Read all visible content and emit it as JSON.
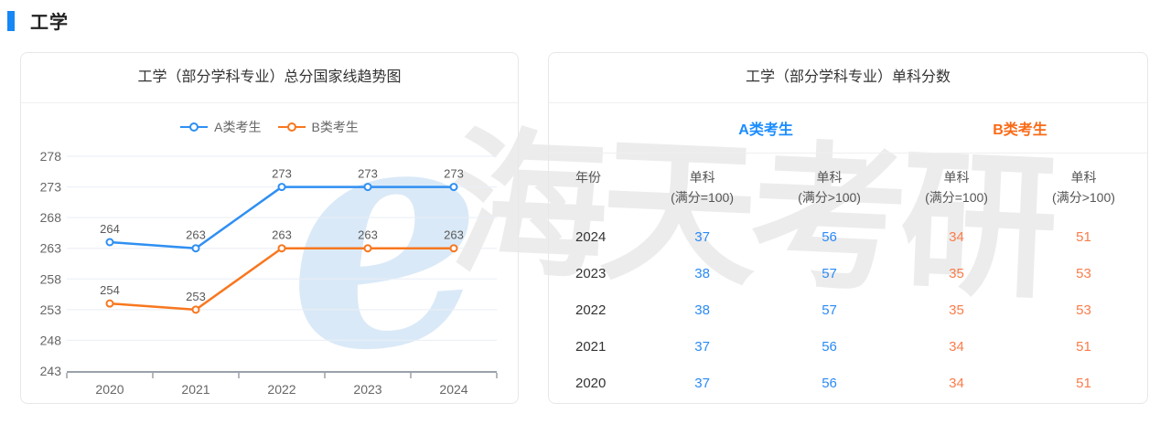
{
  "page": {
    "title": "工学"
  },
  "watermark": {
    "logo_glyph": "e",
    "text": "海天考研"
  },
  "chart_data": {
    "type": "line",
    "title": "工学（部分学科专业）总分国家线趋势图",
    "categories": [
      "2020",
      "2021",
      "2022",
      "2023",
      "2024"
    ],
    "series": [
      {
        "name": "A类考生",
        "color": "#2f8ff2",
        "values": [
          264,
          263,
          273,
          273,
          273
        ]
      },
      {
        "name": "B类考生",
        "color": "#f8771f",
        "values": [
          254,
          253,
          263,
          263,
          263
        ]
      }
    ],
    "ylim": [
      243,
      278
    ],
    "ytick_step": 5,
    "grid": true,
    "legend_position": "top",
    "xlabel": "",
    "ylabel": ""
  },
  "table_panel": {
    "title": "工学（部分学科专业）单科分数",
    "group_headers": [
      {
        "label": "A类考生",
        "color": "#1a8cff"
      },
      {
        "label": "B类考生",
        "color": "#fa6a16"
      }
    ],
    "columns": [
      {
        "line1": "年份",
        "line2": ""
      },
      {
        "line1": "单科",
        "line2": "(满分=100)"
      },
      {
        "line1": "单科",
        "line2": "(满分>100)"
      },
      {
        "line1": "单科",
        "line2": "(满分=100)"
      },
      {
        "line1": "单科",
        "line2": "(满分>100)"
      }
    ],
    "value_colors": [
      "#333333",
      "#2b8af5",
      "#2b8af5",
      "#fa7c4a",
      "#fa7c4a"
    ],
    "rows": [
      [
        "2024",
        "37",
        "56",
        "34",
        "51"
      ],
      [
        "2023",
        "38",
        "57",
        "35",
        "53"
      ],
      [
        "2022",
        "38",
        "57",
        "35",
        "53"
      ],
      [
        "2021",
        "37",
        "56",
        "34",
        "51"
      ],
      [
        "2020",
        "37",
        "56",
        "34",
        "51"
      ]
    ]
  },
  "colors": {
    "accent_blue": "#1687f5",
    "grid_line": "#e9eef5",
    "axis_line": "#9aa1a9",
    "tick_label": "#666666",
    "data_label": "#595959"
  }
}
